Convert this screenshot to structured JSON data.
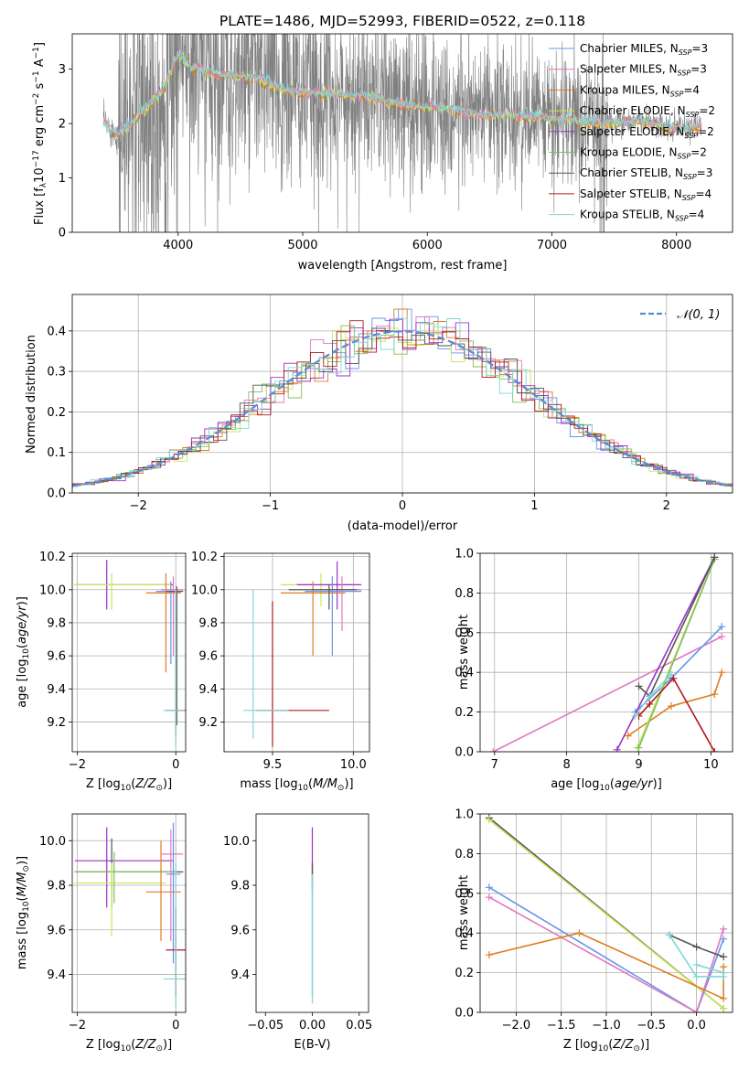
{
  "figure_title": "PLATE=1486, MJD=52993, FIBERID=0522, z=0.118",
  "colors": {
    "chabrier_miles": "#6495ed",
    "salpeter_miles": "#e377c2",
    "kroupa_miles": "#e07b1f",
    "chabrier_elodie": "#c7e85a",
    "salpeter_elodie": "#9b30c8",
    "kroupa_elodie": "#7fbf5f",
    "chabrier_stelib": "#555555",
    "salpeter_stelib": "#b01c1c",
    "kroupa_stelib": "#7fd7d7",
    "spectrum": "#808080",
    "normal_curve": "#5b8bd6"
  },
  "legend_entries": [
    {
      "pre": "Chabrier MILES, N",
      "sub": "SSP",
      "post": "=3",
      "color_key": "chabrier_miles"
    },
    {
      "pre": "Salpeter MILES, N",
      "sub": "SSP",
      "post": "=3",
      "color_key": "salpeter_miles"
    },
    {
      "pre": "Kroupa MILES, N",
      "sub": "SSP",
      "post": "=4",
      "color_key": "kroupa_miles"
    },
    {
      "pre": "Chabrier ELODIE, N",
      "sub": "SSP",
      "post": "=2",
      "color_key": "chabrier_elodie"
    },
    {
      "pre": "Salpeter ELODIE, N",
      "sub": "SSP",
      "post": "=2",
      "color_key": "salpeter_elodie"
    },
    {
      "pre": "Kroupa ELODIE, N",
      "sub": "SSP",
      "post": "=2",
      "color_key": "kroupa_elodie"
    },
    {
      "pre": "Chabrier STELIB, N",
      "sub": "SSP",
      "post": "=3",
      "color_key": "chabrier_stelib"
    },
    {
      "pre": "Salpeter STELIB, N",
      "sub": "SSP",
      "post": "=4",
      "color_key": "salpeter_stelib"
    },
    {
      "pre": "Kroupa STELIB, N",
      "sub": "SSP",
      "post": "=4",
      "color_key": "kroupa_stelib"
    }
  ],
  "chart_data": [
    {
      "id": "spectrum",
      "type": "line",
      "title": "PLATE=1486, MJD=52993, FIBERID=0522, z=0.118",
      "xlabel": "wavelength [Angstrom, rest frame]",
      "ylabel": "Flux [fλ10⁻¹⁷ erg cm⁻² s⁻¹ A⁻¹]",
      "xlim": [
        3150,
        8450
      ],
      "ylim": [
        0,
        3.65
      ],
      "xticks": [
        4000,
        5000,
        6000,
        7000,
        8000
      ],
      "yticks": [
        0,
        1,
        2,
        3
      ],
      "grid": false,
      "legend": "upper-right",
      "model_continuum": [
        [
          3400,
          2.05
        ],
        [
          3500,
          1.8
        ],
        [
          3600,
          1.95
        ],
        [
          3700,
          2.2
        ],
        [
          3800,
          2.4
        ],
        [
          3900,
          2.7
        ],
        [
          4000,
          3.3
        ],
        [
          4100,
          3.05
        ],
        [
          4300,
          2.9
        ],
        [
          4600,
          2.85
        ],
        [
          4900,
          2.6
        ],
        [
          5200,
          2.55
        ],
        [
          5500,
          2.5
        ],
        [
          5800,
          2.35
        ],
        [
          6100,
          2.3
        ],
        [
          6400,
          2.15
        ],
        [
          6700,
          2.15
        ],
        [
          7000,
          2.1
        ],
        [
          7400,
          2.0
        ],
        [
          7700,
          2.05
        ],
        [
          8000,
          1.9
        ],
        [
          8200,
          1.95
        ]
      ]
    },
    {
      "id": "residuals",
      "type": "step-histogram",
      "xlabel": "(data-model)/error",
      "ylabel": "Normed distribution",
      "xlim": [
        -2.5,
        2.5
      ],
      "ylim": [
        0,
        0.49
      ],
      "xticks": [
        -2,
        -1,
        0,
        1,
        2
      ],
      "yticks": [
        0.0,
        0.1,
        0.2,
        0.3,
        0.4
      ],
      "grid": true,
      "legend": "upper-right",
      "curve_label": "𝒩(0, 1)",
      "bin_width": 0.1
    },
    {
      "id": "age_vs_Z",
      "type": "errorbar",
      "xlabel": "Z [log10(Z/Z⊙)]",
      "ylabel": "age  [log10(age/yr)]",
      "xlim": [
        -2.1,
        0.2
      ],
      "ylim": [
        9.02,
        10.22
      ],
      "xticks": [
        -2,
        0
      ],
      "yticks": [
        9.2,
        9.4,
        9.6,
        9.8,
        10.0,
        10.2
      ],
      "grid": true,
      "points": [
        {
          "s": "salpeter_elodie",
          "x": -1.4,
          "xl": -2.05,
          "xh": -0.05,
          "y": 10.03,
          "yl": 9.88,
          "yh": 10.18
        },
        {
          "s": "chabrier_elodie",
          "x": -1.3,
          "xl": -2.05,
          "xh": -0.1,
          "y": 10.03,
          "yl": 9.88,
          "yh": 10.1
        },
        {
          "s": "kroupa_miles",
          "x": -0.2,
          "xl": -0.6,
          "xh": 0.1,
          "y": 9.98,
          "yl": 9.5,
          "yh": 10.1
        },
        {
          "s": "chabrier_miles",
          "x": -0.1,
          "xl": -0.4,
          "xh": 0.12,
          "y": 9.99,
          "yl": 9.55,
          "yh": 10.05
        },
        {
          "s": "salpeter_miles",
          "x": -0.05,
          "xl": -0.3,
          "xh": 0.15,
          "y": 10.0,
          "yl": 9.6,
          "yh": 10.08
        },
        {
          "s": "chabrier_stelib",
          "x": 0.02,
          "xl": -0.2,
          "xh": 0.15,
          "y": 9.99,
          "yl": 9.18,
          "yh": 10.02
        },
        {
          "s": "salpeter_stelib",
          "x": 0.0,
          "xl": -0.2,
          "xh": 0.22,
          "y": 9.27,
          "yl": 9.12,
          "yh": 9.97
        },
        {
          "s": "kroupa_stelib",
          "x": 0.0,
          "xl": -0.25,
          "xh": 0.18,
          "y": 9.27,
          "yl": 9.05,
          "yh": 10.0
        }
      ]
    },
    {
      "id": "age_vs_mass",
      "type": "errorbar",
      "xlabel": "mass [log10(M/M⊙)]",
      "ylabel": "",
      "xlim": [
        9.2,
        10.1
      ],
      "ylim": [
        9.02,
        10.22
      ],
      "xticks": [
        9.5,
        10.0
      ],
      "yticks": [
        9.2,
        9.4,
        9.6,
        9.8,
        10.0,
        10.2
      ],
      "grid": true,
      "points": [
        {
          "s": "chabrier_elodie",
          "x": 9.8,
          "xl": 9.55,
          "xh": 10.05,
          "y": 10.03,
          "yl": 9.9,
          "yh": 10.1
        },
        {
          "s": "salpeter_elodie",
          "x": 9.9,
          "xl": 9.65,
          "xh": 10.05,
          "y": 10.03,
          "yl": 9.88,
          "yh": 10.17
        },
        {
          "s": "kroupa_miles",
          "x": 9.75,
          "xl": 9.55,
          "xh": 9.95,
          "y": 9.98,
          "yl": 9.6,
          "yh": 10.05
        },
        {
          "s": "chabrier_miles",
          "x": 9.87,
          "xl": 9.7,
          "xh": 10.05,
          "y": 9.99,
          "yl": 9.6,
          "yh": 10.08
        },
        {
          "s": "salpeter_miles",
          "x": 9.93,
          "xl": 9.75,
          "xh": 10.05,
          "y": 10.0,
          "yl": 9.75,
          "yh": 10.08
        },
        {
          "s": "chabrier_stelib",
          "x": 9.85,
          "xl": 9.6,
          "xh": 10.02,
          "y": 10.0,
          "yl": 9.88,
          "yh": 10.03
        },
        {
          "s": "salpeter_stelib",
          "x": 9.5,
          "xl": 9.4,
          "xh": 9.85,
          "y": 9.27,
          "yl": 9.05,
          "yh": 9.93
        },
        {
          "s": "kroupa_stelib",
          "x": 9.38,
          "xl": 9.32,
          "xh": 9.6,
          "y": 9.27,
          "yl": 9.1,
          "yh": 10.0
        }
      ]
    },
    {
      "id": "weight_vs_age",
      "type": "line",
      "xlabel": "age  [log10(age/yr)]",
      "ylabel": "mass weight",
      "xlim": [
        6.8,
        10.3
      ],
      "ylim": [
        0,
        1.0
      ],
      "xticks": [
        7,
        8,
        9,
        10
      ],
      "yticks": [
        0.0,
        0.2,
        0.4,
        0.6,
        0.8,
        1.0
      ],
      "grid": true,
      "series": [
        {
          "s": "salpeter_miles",
          "x": [
            6.98,
            10.15
          ],
          "y": [
            0.0,
            0.58
          ]
        },
        {
          "s": "chabrier_miles",
          "x": [
            8.95,
            9.45,
            10.15
          ],
          "y": [
            0.2,
            0.37,
            0.63
          ]
        },
        {
          "s": "kroupa_miles",
          "x": [
            8.85,
            9.45,
            10.05,
            10.15
          ],
          "y": [
            0.08,
            0.23,
            0.29,
            0.4
          ]
        },
        {
          "s": "salpeter_elodie",
          "x": [
            8.7,
            10.05
          ],
          "y": [
            0.01,
            0.98
          ]
        },
        {
          "s": "chabrier_elodie",
          "x": [
            8.98,
            10.05
          ],
          "y": [
            0.02,
            0.97
          ]
        },
        {
          "s": "kroupa_elodie",
          "x": [
            9.0,
            10.05
          ],
          "y": [
            0.02,
            0.97
          ]
        },
        {
          "s": "chabrier_stelib",
          "x": [
            9.0,
            9.15,
            10.05
          ],
          "y": [
            0.33,
            0.28,
            0.98
          ]
        },
        {
          "s": "salpeter_stelib",
          "x": [
            9.0,
            9.15,
            9.48,
            10.05
          ],
          "y": [
            0.18,
            0.24,
            0.37,
            0.0
          ]
        },
        {
          "s": "kroupa_stelib",
          "x": [
            8.95,
            9.15,
            9.45
          ],
          "y": [
            0.18,
            0.28,
            0.39
          ]
        }
      ]
    },
    {
      "id": "mass_vs_Z",
      "type": "errorbar",
      "xlabel": "Z [log10(Z/Z⊙)]",
      "ylabel": "mass [log10(M/M⊙)]",
      "xlim": [
        -2.1,
        0.2
      ],
      "ylim": [
        9.23,
        10.12
      ],
      "xticks": [
        -2,
        0
      ],
      "yticks": [
        9.4,
        9.6,
        9.8,
        10.0
      ],
      "grid": true,
      "points": [
        {
          "s": "salpeter_elodie",
          "x": -1.4,
          "xl": -2.05,
          "xh": -0.05,
          "y": 9.91,
          "yl": 9.7,
          "yh": 10.06
        },
        {
          "s": "chabrier_stelib",
          "x": -1.3,
          "xl": -2.05,
          "xh": 0.15,
          "y": 9.86,
          "yl": 9.7,
          "yh": 10.01
        },
        {
          "s": "kroupa_elodie",
          "x": -1.25,
          "xl": -2.05,
          "xh": 0.0,
          "y": 9.86,
          "yl": 9.72,
          "yh": 9.95
        },
        {
          "s": "chabrier_elodie",
          "x": -1.3,
          "xl": -2.05,
          "xh": -0.2,
          "y": 9.81,
          "yl": 9.57,
          "yh": 9.9
        },
        {
          "s": "kroupa_miles",
          "x": -0.3,
          "xl": -0.6,
          "xh": 0.1,
          "y": 9.77,
          "yl": 9.55,
          "yh": 10.0
        },
        {
          "s": "salpeter_miles",
          "x": -0.1,
          "xl": -0.3,
          "xh": 0.15,
          "y": 9.94,
          "yl": 9.55,
          "yh": 10.05
        },
        {
          "s": "chabrier_miles",
          "x": -0.05,
          "xl": -0.2,
          "xh": 0.1,
          "y": 9.85,
          "yl": 9.45,
          "yh": 10.08
        },
        {
          "s": "salpeter_stelib",
          "x": 0.0,
          "xl": -0.2,
          "xh": 0.22,
          "y": 9.51,
          "yl": 9.3,
          "yh": 9.7
        },
        {
          "s": "kroupa_stelib",
          "x": 0.0,
          "xl": -0.25,
          "xh": 0.22,
          "y": 9.38,
          "yl": 9.25,
          "yh": 9.9
        }
      ]
    },
    {
      "id": "mass_vs_ebv",
      "type": "errorbar",
      "xlabel": "E(B-V)",
      "ylabel": "",
      "xlim": [
        -0.06,
        0.06
      ],
      "ylim": [
        9.23,
        10.12
      ],
      "xticks": [
        -0.05,
        0.0,
        0.05
      ],
      "yticks": [
        9.4,
        9.6,
        9.8,
        10.0
      ],
      "grid": false,
      "points": [
        {
          "s": "salpeter_elodie",
          "x": 0.0,
          "xl": 0.0,
          "xh": 0.0,
          "y": 9.95,
          "yl": 9.85,
          "yh": 10.06
        },
        {
          "s": "salpeter_stelib",
          "x": 0.0,
          "xl": 0.0,
          "xh": 0.0,
          "y": 9.85,
          "yl": 9.78,
          "yh": 9.9
        },
        {
          "s": "chabrier_stelib",
          "x": 0.0,
          "xl": 0.0,
          "xh": 0.0,
          "y": 9.6,
          "yl": 9.3,
          "yh": 9.9
        },
        {
          "s": "kroupa_stelib",
          "x": 0.0,
          "xl": 0.0,
          "xh": 0.0,
          "y": 9.6,
          "yl": 9.27,
          "yh": 9.85
        }
      ]
    },
    {
      "id": "weight_vs_Z",
      "type": "line",
      "xlabel": "Z [log10(Z/Z⊙)]",
      "ylabel": "mass weight",
      "xlim": [
        -2.4,
        0.4
      ],
      "ylim": [
        0,
        1.0
      ],
      "xticks": [
        -2.0,
        -1.5,
        -1.0,
        -0.5,
        0.0
      ],
      "yticks": [
        0.0,
        0.2,
        0.4,
        0.6,
        0.8,
        1.0
      ],
      "grid": true,
      "series": [
        {
          "s": "chabrier_stelib",
          "x": [
            -2.3,
            0.3
          ],
          "y": [
            0.98,
            0.02
          ]
        },
        {
          "s": "chabrier_elodie",
          "x": [
            -2.3,
            0.3
          ],
          "y": [
            0.97,
            0.02
          ]
        },
        {
          "s": "chabrier_miles",
          "x": [
            -2.3,
            0.0,
            0.3
          ],
          "y": [
            0.63,
            0.0,
            0.37
          ]
        },
        {
          "s": "salpeter_miles",
          "x": [
            -2.3,
            0.0,
            0.3
          ],
          "y": [
            0.58,
            0.0,
            0.42
          ]
        },
        {
          "s": "kroupa_miles",
          "x": [
            -2.3,
            -1.3,
            0.3,
            0.3
          ],
          "y": [
            0.29,
            0.4,
            0.07,
            0.23
          ]
        },
        {
          "s": "chabrier_stelib",
          "x": [
            -0.3,
            0.0,
            0.3
          ],
          "y": [
            0.39,
            0.33,
            0.28
          ]
        },
        {
          "s": "kroupa_stelib",
          "x": [
            -0.3,
            0.0,
            0.3
          ],
          "y": [
            0.39,
            0.18,
            0.18
          ]
        },
        {
          "s": "kroupa_stelib",
          "x": [
            0.0,
            0.3
          ],
          "y": [
            0.24,
            0.2
          ]
        }
      ]
    }
  ]
}
